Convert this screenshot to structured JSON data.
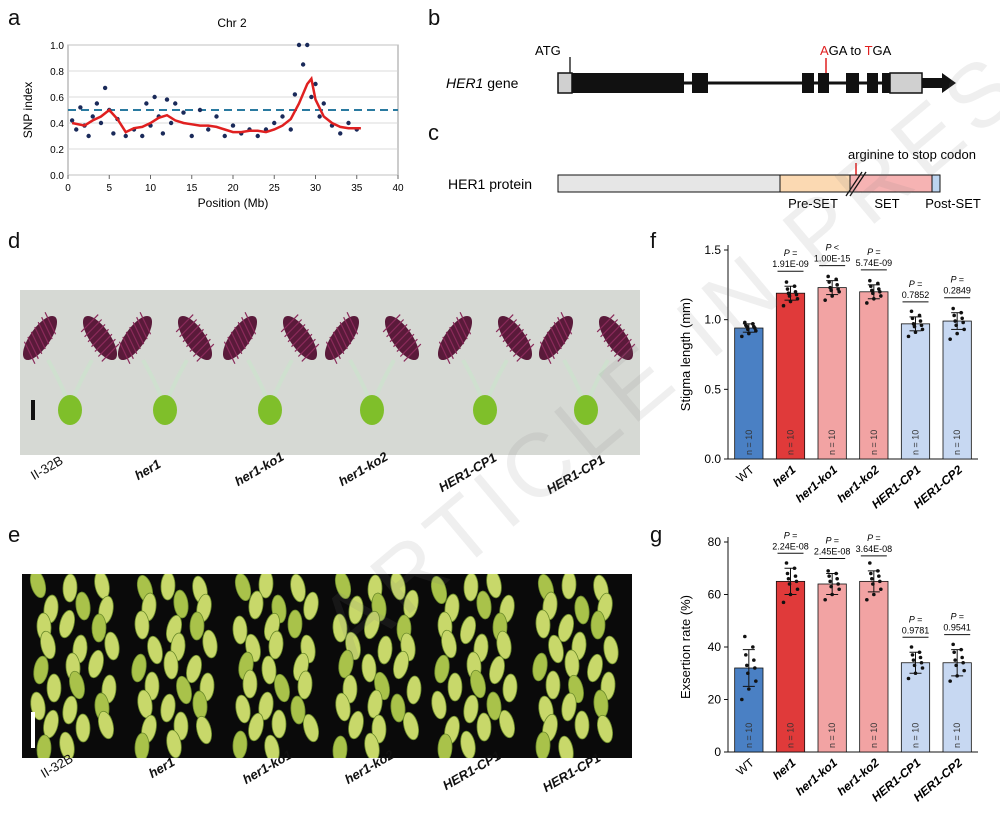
{
  "panel_letters": {
    "a": "a",
    "b": "b",
    "c": "c",
    "d": "d",
    "e": "e",
    "f": "f",
    "g": "g"
  },
  "colors": {
    "wt": "#4a80c4",
    "her1": "#e03a3a",
    "ko": "#f2a3a3",
    "cp": "#c7d8f2",
    "dashed": "#2a7aa0",
    "snp_line": "#e02020",
    "dots": "#1a2a5a"
  },
  "panel_a": {
    "title": "Chr 2",
    "xlabel": "Position (Mb)",
    "ylabel": "SNP index"
  },
  "panel_b": {
    "atg_label": "ATG",
    "mutation_prefix": "A",
    "mutation_middle": "GA to ",
    "mutation_t": "T",
    "mutation_end": "GA",
    "gene_italic": "HER1",
    "gene_suffix": " gene"
  },
  "panel_c": {
    "protein_label": "HER1 protein",
    "mutation_label": "arginine to stop codon",
    "domain_pre": "Pre-SET",
    "domain_set": "SET",
    "domain_post": "Post-SET"
  },
  "panel_d": {
    "labels": [
      "II-32B",
      "her1",
      "her1-ko1",
      "her1-ko2",
      "HER1-CP1",
      "HER1-CP1"
    ]
  },
  "panel_e": {
    "labels": [
      "II-32B",
      "her1",
      "her1-ko1",
      "her1-ko2",
      "HER1-CP1",
      "HER1-CP1"
    ]
  },
  "chart_data": [
    {
      "type": "scatter",
      "panel": "a",
      "title": "Chr 2",
      "xlabel": "Position (Mb)",
      "ylabel": "SNP index",
      "xlim": [
        0,
        40
      ],
      "ylim": [
        0.0,
        1.0
      ],
      "xticks": [
        0,
        5,
        10,
        15,
        20,
        25,
        30,
        35,
        40
      ],
      "yticks": [
        0.0,
        0.2,
        0.4,
        0.6,
        0.8,
        1.0
      ],
      "ytick_labels": [
        "0.0",
        "0.2",
        "0.4",
        "0.6",
        "0.8",
        "1.0"
      ],
      "threshold": 0.5,
      "smoothed": {
        "x": [
          0.5,
          2,
          3,
          4,
          5,
          6,
          7,
          8,
          9,
          10,
          11,
          12,
          13,
          14,
          15,
          16,
          17,
          18,
          19,
          20,
          21,
          22,
          23,
          24,
          25,
          26,
          27,
          28,
          29,
          29.5,
          30,
          31,
          32,
          33,
          34,
          35.5
        ],
        "y": [
          0.4,
          0.38,
          0.42,
          0.45,
          0.5,
          0.43,
          0.33,
          0.36,
          0.37,
          0.4,
          0.44,
          0.46,
          0.42,
          0.4,
          0.39,
          0.38,
          0.38,
          0.37,
          0.35,
          0.33,
          0.33,
          0.34,
          0.34,
          0.33,
          0.35,
          0.38,
          0.43,
          0.55,
          0.7,
          0.74,
          0.58,
          0.45,
          0.4,
          0.37,
          0.36,
          0.36
        ]
      },
      "points": {
        "x": [
          0.5,
          1,
          1.5,
          2,
          2.5,
          3,
          3.5,
          4,
          4.5,
          5,
          5.5,
          6,
          7,
          8,
          9,
          9.5,
          10,
          10.5,
          11,
          11.5,
          12,
          12.5,
          13,
          14,
          15,
          16,
          17,
          18,
          19,
          20,
          21,
          22,
          23,
          24,
          25,
          26,
          27,
          27.5,
          28,
          28.5,
          29,
          29.5,
          30,
          30.5,
          31,
          32,
          33,
          34,
          35
        ],
        "y": [
          0.42,
          0.35,
          0.52,
          0.38,
          0.3,
          0.45,
          0.55,
          0.4,
          0.67,
          0.5,
          0.32,
          0.43,
          0.3,
          0.35,
          0.3,
          0.55,
          0.38,
          0.6,
          0.45,
          0.32,
          0.58,
          0.4,
          0.55,
          0.48,
          0.3,
          0.5,
          0.35,
          0.45,
          0.3,
          0.38,
          0.32,
          0.35,
          0.3,
          0.35,
          0.4,
          0.45,
          0.35,
          0.62,
          1.0,
          0.85,
          1.0,
          0.6,
          0.7,
          0.45,
          0.55,
          0.38,
          0.32,
          0.4,
          0.35
        ]
      }
    },
    {
      "type": "bar",
      "panel": "f",
      "ylabel": "Stigma length (mm)",
      "ylim": [
        0.0,
        1.5
      ],
      "yticks": [
        0.0,
        0.5,
        1.0,
        1.5
      ],
      "ytick_labels": [
        "0.0",
        "0.5",
        "1.0",
        "1.5"
      ],
      "categories": [
        "WT",
        "her1",
        "her1-ko1",
        "her1-ko2",
        "HER1-CP1",
        "HER1-CP2"
      ],
      "italic": [
        false,
        true,
        true,
        true,
        true,
        true
      ],
      "values": [
        0.94,
        1.19,
        1.23,
        1.2,
        0.97,
        0.99
      ],
      "errors": [
        0.03,
        0.05,
        0.05,
        0.05,
        0.05,
        0.06
      ],
      "n_labels": [
        "n = 10",
        "n = 10",
        "n = 10",
        "n = 10",
        "n = 10",
        "n = 10"
      ],
      "p_top": [
        "",
        "P =",
        "P <",
        "P =",
        "P =",
        "P ="
      ],
      "p_bottom": [
        "",
        "1.91E-09",
        "1.00E-15",
        "5.74E-09",
        "0.7852",
        "0.2849"
      ],
      "points": [
        [
          0.88,
          0.9,
          0.92,
          0.93,
          0.94,
          0.95,
          0.95,
          0.96,
          0.97,
          0.98
        ],
        [
          1.1,
          1.13,
          1.15,
          1.17,
          1.18,
          1.19,
          1.2,
          1.22,
          1.24,
          1.27
        ],
        [
          1.14,
          1.17,
          1.2,
          1.21,
          1.22,
          1.23,
          1.25,
          1.27,
          1.29,
          1.31
        ],
        [
          1.12,
          1.15,
          1.17,
          1.19,
          1.2,
          1.21,
          1.22,
          1.24,
          1.26,
          1.28
        ],
        [
          0.88,
          0.91,
          0.93,
          0.95,
          0.96,
          0.97,
          0.99,
          1.01,
          1.03,
          1.06
        ],
        [
          0.86,
          0.9,
          0.93,
          0.96,
          0.98,
          0.99,
          1.01,
          1.03,
          1.05,
          1.08
        ]
      ]
    },
    {
      "type": "bar",
      "panel": "g",
      "ylabel": "Exsertion rate (%)",
      "ylim": [
        0,
        80
      ],
      "yticks": [
        0,
        20,
        40,
        60,
        80
      ],
      "ytick_labels": [
        "0",
        "20",
        "40",
        "60",
        "80"
      ],
      "categories": [
        "WT",
        "her1",
        "her1-ko1",
        "her1-ko2",
        "HER1-CP1",
        "HER1-CP2"
      ],
      "italic": [
        false,
        true,
        true,
        true,
        true,
        true
      ],
      "values": [
        32,
        65,
        64,
        65,
        34,
        34
      ],
      "errors": [
        7,
        5,
        4,
        4,
        4,
        5
      ],
      "n_labels": [
        "n = 10",
        "n = 10",
        "n = 10",
        "n = 10",
        "n = 10",
        "n = 10"
      ],
      "p_top": [
        "",
        "P =",
        "P =",
        "P =",
        "P =",
        "P ="
      ],
      "p_bottom": [
        "",
        "2.24E-08",
        "2.45E-08",
        "3.64E-08",
        "0.9781",
        "0.9541"
      ],
      "points": [
        [
          20,
          24,
          27,
          30,
          32,
          33,
          35,
          37,
          40,
          44
        ],
        [
          57,
          60,
          62,
          64,
          65,
          66,
          67,
          68,
          70,
          72
        ],
        [
          58,
          60,
          62,
          63,
          64,
          65,
          66,
          67,
          68,
          69
        ],
        [
          58,
          60,
          62,
          64,
          65,
          66,
          67,
          68,
          69,
          72
        ],
        [
          28,
          30,
          32,
          33,
          34,
          35,
          36,
          37,
          38,
          40
        ],
        [
          27,
          29,
          31,
          33,
          34,
          35,
          36,
          38,
          39,
          41
        ]
      ]
    }
  ]
}
